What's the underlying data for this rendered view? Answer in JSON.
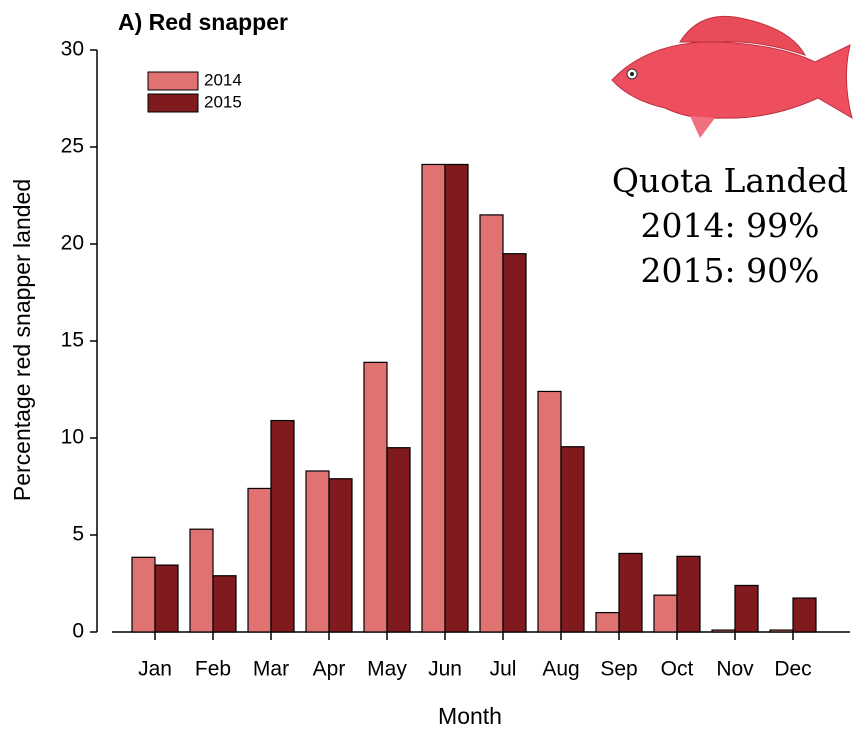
{
  "chart_data": {
    "type": "bar",
    "title": "A) Red snapper",
    "x_label": "Month",
    "y_label": "Percentage red snapper landed",
    "categories": [
      "Jan",
      "Feb",
      "Mar",
      "Apr",
      "May",
      "Jun",
      "Jul",
      "Aug",
      "Sep",
      "Oct",
      "Nov",
      "Dec"
    ],
    "series": [
      {
        "name": "2014",
        "color": "#e07272",
        "values": [
          3.85,
          5.3,
          7.4,
          8.3,
          13.9,
          24.1,
          21.5,
          12.4,
          1.0,
          1.9,
          0.1,
          0.1
        ]
      },
      {
        "name": "2015",
        "color": "#7f1a1f",
        "values": [
          3.45,
          2.9,
          10.9,
          7.9,
          9.5,
          24.1,
          19.5,
          9.55,
          4.05,
          3.9,
          2.4,
          1.75
        ]
      }
    ],
    "ylim": [
      0,
      30
    ],
    "yticks": [
      0,
      5,
      10,
      15,
      20,
      25,
      30
    ],
    "grid": false,
    "legend": "upper left",
    "annotations": [
      "Quota Landed",
      "2014: 99%",
      "2015: 90%"
    ]
  }
}
